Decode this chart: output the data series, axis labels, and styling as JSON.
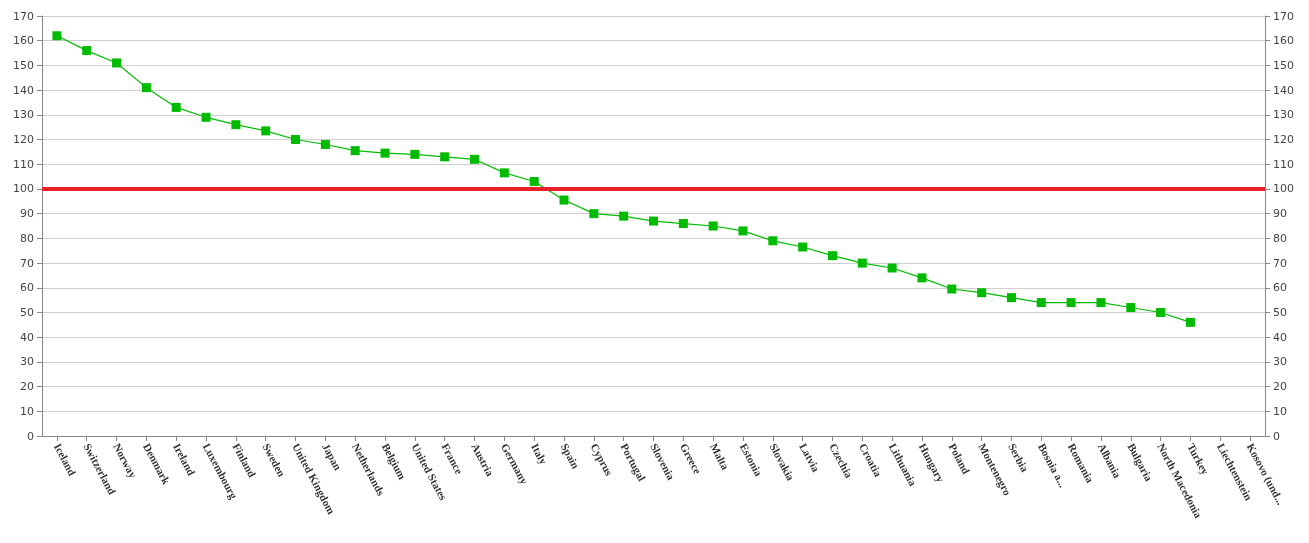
{
  "chart_data": {
    "type": "line",
    "categories": [
      "Iceland",
      "Switzerland",
      "Norway",
      "Denmark",
      "Ireland",
      "Luxembourg",
      "Finland",
      "Sweden",
      "United Kingdom",
      "Japan",
      "Netherlands",
      "Belgium",
      "United States",
      "France",
      "Austria",
      "Germany",
      "Italy",
      "Spain",
      "Cyprus",
      "Portugal",
      "Slovenia",
      "Greece",
      "Malta",
      "Estonia",
      "Slovakia",
      "Latvia",
      "Czechia",
      "Croatia",
      "Lithuania",
      "Hungary",
      "Poland",
      "Montenegro",
      "Serbia",
      "Bosnia a...",
      "Romania",
      "Albania",
      "Bulgaria",
      "North Macedonia",
      "Turkey",
      "Liechtenstein",
      "Kosovo (und..."
    ],
    "series": [
      {
        "color": "#00bb00",
        "values": [
          162,
          156,
          151,
          141,
          133,
          129,
          126,
          123.5,
          120,
          118,
          115.5,
          114.5,
          114,
          113,
          112,
          106.5,
          103,
          95.5,
          90,
          89,
          87,
          86,
          85,
          83,
          79,
          76.5,
          73,
          70,
          68,
          64,
          59.5,
          58,
          56,
          54,
          54,
          54,
          52,
          50,
          46,
          null,
          null
        ]
      }
    ],
    "ylim": [
      0,
      170
    ],
    "yticks": [
      0,
      10,
      20,
      30,
      40,
      50,
      60,
      70,
      80,
      90,
      100,
      110,
      120,
      130,
      140,
      150,
      160,
      170
    ],
    "y2lim": [
      0,
      170
    ],
    "y2ticks": [
      0,
      10,
      20,
      30,
      40,
      50,
      60,
      70,
      80,
      90,
      100,
      110,
      120,
      130,
      140,
      150,
      160,
      170
    ],
    "ref_lines": [
      {
        "axis": "y",
        "value": 100,
        "color": "#e8202a",
        "line_style": "solid"
      }
    ],
    "grid": "y",
    "marker": "square",
    "line_style": "solid"
  }
}
